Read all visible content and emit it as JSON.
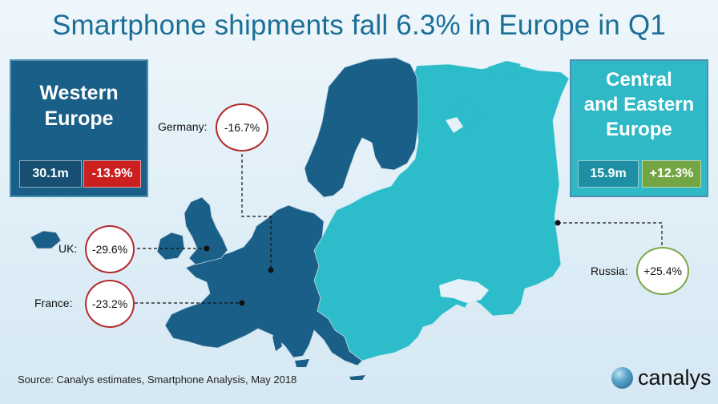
{
  "title": "Smartphone shipments fall 6.3% in Europe in Q1",
  "regions": {
    "western": {
      "name_line1": "Western",
      "name_line2": "Europe",
      "shipments": "30.1m",
      "change": "-13.9%",
      "color": "#1a5f87",
      "change_color": "#cc1f1f"
    },
    "central_eastern": {
      "name_line1": "Central",
      "name_line2": "and Eastern",
      "name_line3": "Europe",
      "shipments": "15.9m",
      "change": "+12.3%",
      "color": "#2fb8c6",
      "change_color": "#74a543"
    }
  },
  "callouts": {
    "germany": {
      "label": "Germany:",
      "value": "-16.7%"
    },
    "uk": {
      "label": "UK:",
      "value": "-29.6%"
    },
    "france": {
      "label": "France:",
      "value": "-23.2%"
    },
    "russia": {
      "label": "Russia:",
      "value": "+25.4%"
    }
  },
  "source": "Source: Canalys estimates, Smartphone Analysis, May 2018",
  "brand": {
    "name": "canalys",
    "logo_icon": "canalys-globe-icon"
  }
}
